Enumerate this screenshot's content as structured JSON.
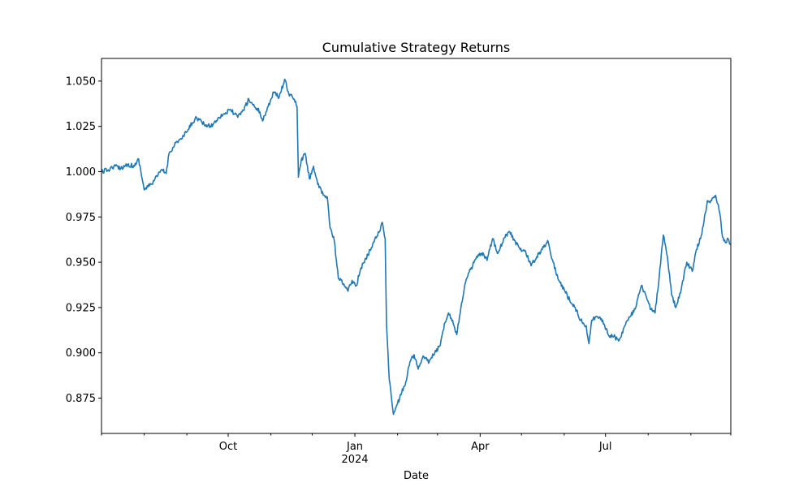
{
  "chart_data": {
    "type": "line",
    "title": "Cumulative Strategy Returns",
    "xlabel": "Date",
    "ylabel": "",
    "x_range": [
      "2023-07-01",
      "2024-09-30"
    ],
    "ylim": [
      0.8555,
      1.0625
    ],
    "grid": false,
    "y_ticks": [
      {
        "value": 0.875,
        "label": "0.875"
      },
      {
        "value": 0.9,
        "label": "0.900"
      },
      {
        "value": 0.925,
        "label": "0.925"
      },
      {
        "value": 0.95,
        "label": "0.950"
      },
      {
        "value": 0.975,
        "label": "0.975"
      },
      {
        "value": 1.0,
        "label": "1.000"
      },
      {
        "value": 1.025,
        "label": "1.025"
      },
      {
        "value": 1.05,
        "label": "1.050"
      }
    ],
    "x_major_ticks": [
      {
        "date": "2023-10-01",
        "label": "Oct",
        "sublabel": ""
      },
      {
        "date": "2024-01-01",
        "label": "Jan",
        "sublabel": "2024"
      },
      {
        "date": "2024-04-01",
        "label": "Apr",
        "sublabel": ""
      },
      {
        "date": "2024-07-01",
        "label": "Jul",
        "sublabel": ""
      }
    ],
    "x_minor_ticks": [
      "2023-07-01",
      "2023-08-01",
      "2023-09-01",
      "2023-11-01",
      "2023-12-01",
      "2024-02-01",
      "2024-03-01",
      "2024-05-01",
      "2024-06-01",
      "2024-08-01",
      "2024-09-01",
      "2024-09-30"
    ],
    "series": [
      {
        "color": "#1f77b4",
        "points": [
          [
            "2023-07-01",
            1.0
          ],
          [
            "2023-07-06",
            1.001
          ],
          [
            "2023-07-10",
            1.003
          ],
          [
            "2023-07-15",
            1.002
          ],
          [
            "2023-07-20",
            1.004
          ],
          [
            "2023-07-25",
            1.003
          ],
          [
            "2023-07-28",
            1.007
          ],
          [
            "2023-08-01",
            0.99
          ],
          [
            "2023-08-06",
            0.993
          ],
          [
            "2023-08-11",
            0.998
          ],
          [
            "2023-08-14",
            1.001
          ],
          [
            "2023-08-17",
            0.999
          ],
          [
            "2023-08-19",
            1.01
          ],
          [
            "2023-08-24",
            1.016
          ],
          [
            "2023-08-28",
            1.018
          ],
          [
            "2023-09-01",
            1.022
          ],
          [
            "2023-09-05",
            1.027
          ],
          [
            "2023-09-08",
            1.03
          ],
          [
            "2023-09-12",
            1.027
          ],
          [
            "2023-09-16",
            1.025
          ],
          [
            "2023-09-20",
            1.026
          ],
          [
            "2023-09-24",
            1.03
          ],
          [
            "2023-09-28",
            1.032
          ],
          [
            "2023-10-03",
            1.034
          ],
          [
            "2023-10-08",
            1.03
          ],
          [
            "2023-10-12",
            1.034
          ],
          [
            "2023-10-16",
            1.04
          ],
          [
            "2023-10-20",
            1.036
          ],
          [
            "2023-10-24",
            1.033
          ],
          [
            "2023-10-26",
            1.028
          ],
          [
            "2023-10-30",
            1.036
          ],
          [
            "2023-11-03",
            1.044
          ],
          [
            "2023-11-07",
            1.041
          ],
          [
            "2023-11-11",
            1.051
          ],
          [
            "2023-11-14",
            1.043
          ],
          [
            "2023-11-18",
            1.04
          ],
          [
            "2023-11-20",
            1.036
          ],
          [
            "2023-11-21",
            0.997
          ],
          [
            "2023-11-23",
            1.006
          ],
          [
            "2023-11-26",
            1.01
          ],
          [
            "2023-11-29",
            0.996
          ],
          [
            "2023-12-02",
            1.003
          ],
          [
            "2023-12-05",
            0.993
          ],
          [
            "2023-12-09",
            0.987
          ],
          [
            "2023-12-12",
            0.986
          ],
          [
            "2023-12-14",
            0.969
          ],
          [
            "2023-12-17",
            0.962
          ],
          [
            "2023-12-20",
            0.941
          ],
          [
            "2023-12-24",
            0.938
          ],
          [
            "2023-12-27",
            0.934
          ],
          [
            "2023-12-30",
            0.94
          ],
          [
            "2024-01-02",
            0.937
          ],
          [
            "2024-01-05",
            0.946
          ],
          [
            "2024-01-09",
            0.952
          ],
          [
            "2024-01-13",
            0.958
          ],
          [
            "2024-01-16",
            0.964
          ],
          [
            "2024-01-19",
            0.967
          ],
          [
            "2024-01-21",
            0.972
          ],
          [
            "2024-01-23",
            0.963
          ],
          [
            "2024-01-24",
            0.915
          ],
          [
            "2024-01-26",
            0.885
          ],
          [
            "2024-01-29",
            0.866
          ],
          [
            "2024-02-01",
            0.872
          ],
          [
            "2024-02-04",
            0.878
          ],
          [
            "2024-02-07",
            0.884
          ],
          [
            "2024-02-10",
            0.895
          ],
          [
            "2024-02-13",
            0.899
          ],
          [
            "2024-02-16",
            0.891
          ],
          [
            "2024-02-20",
            0.898
          ],
          [
            "2024-02-24",
            0.895
          ],
          [
            "2024-02-28",
            0.9
          ],
          [
            "2024-03-03",
            0.904
          ],
          [
            "2024-03-06",
            0.916
          ],
          [
            "2024-03-09",
            0.922
          ],
          [
            "2024-03-12",
            0.918
          ],
          [
            "2024-03-15",
            0.91
          ],
          [
            "2024-03-18",
            0.925
          ],
          [
            "2024-03-21",
            0.938
          ],
          [
            "2024-03-25",
            0.946
          ],
          [
            "2024-03-29",
            0.952
          ],
          [
            "2024-04-02",
            0.955
          ],
          [
            "2024-04-06",
            0.951
          ],
          [
            "2024-04-10",
            0.963
          ],
          [
            "2024-04-14",
            0.955
          ],
          [
            "2024-04-18",
            0.963
          ],
          [
            "2024-04-22",
            0.967
          ],
          [
            "2024-04-26",
            0.962
          ],
          [
            "2024-04-30",
            0.957
          ],
          [
            "2024-05-04",
            0.956
          ],
          [
            "2024-05-08",
            0.948
          ],
          [
            "2024-05-12",
            0.953
          ],
          [
            "2024-05-16",
            0.957
          ],
          [
            "2024-05-20",
            0.962
          ],
          [
            "2024-05-24",
            0.95
          ],
          [
            "2024-05-28",
            0.94
          ],
          [
            "2024-06-01",
            0.935
          ],
          [
            "2024-06-05",
            0.929
          ],
          [
            "2024-06-09",
            0.925
          ],
          [
            "2024-06-13",
            0.918
          ],
          [
            "2024-06-17",
            0.915
          ],
          [
            "2024-06-19",
            0.905
          ],
          [
            "2024-06-21",
            0.918
          ],
          [
            "2024-06-25",
            0.92
          ],
          [
            "2024-06-29",
            0.918
          ],
          [
            "2024-07-03",
            0.91
          ],
          [
            "2024-07-07",
            0.909
          ],
          [
            "2024-07-11",
            0.907
          ],
          [
            "2024-07-15",
            0.915
          ],
          [
            "2024-07-19",
            0.92
          ],
          [
            "2024-07-23",
            0.925
          ],
          [
            "2024-07-27",
            0.937
          ],
          [
            "2024-07-31",
            0.93
          ],
          [
            "2024-08-03",
            0.924
          ],
          [
            "2024-08-06",
            0.922
          ],
          [
            "2024-08-09",
            0.942
          ],
          [
            "2024-08-12",
            0.965
          ],
          [
            "2024-08-15",
            0.953
          ],
          [
            "2024-08-18",
            0.932
          ],
          [
            "2024-08-21",
            0.925
          ],
          [
            "2024-08-25",
            0.935
          ],
          [
            "2024-08-29",
            0.95
          ],
          [
            "2024-09-02",
            0.945
          ],
          [
            "2024-09-05",
            0.957
          ],
          [
            "2024-09-08",
            0.963
          ],
          [
            "2024-09-10",
            0.97
          ],
          [
            "2024-09-13",
            0.984
          ],
          [
            "2024-09-16",
            0.984
          ],
          [
            "2024-09-19",
            0.987
          ],
          [
            "2024-09-22",
            0.977
          ],
          [
            "2024-09-24",
            0.964
          ],
          [
            "2024-09-26",
            0.961
          ],
          [
            "2024-09-28",
            0.963
          ],
          [
            "2024-09-30",
            0.96
          ]
        ]
      }
    ]
  }
}
